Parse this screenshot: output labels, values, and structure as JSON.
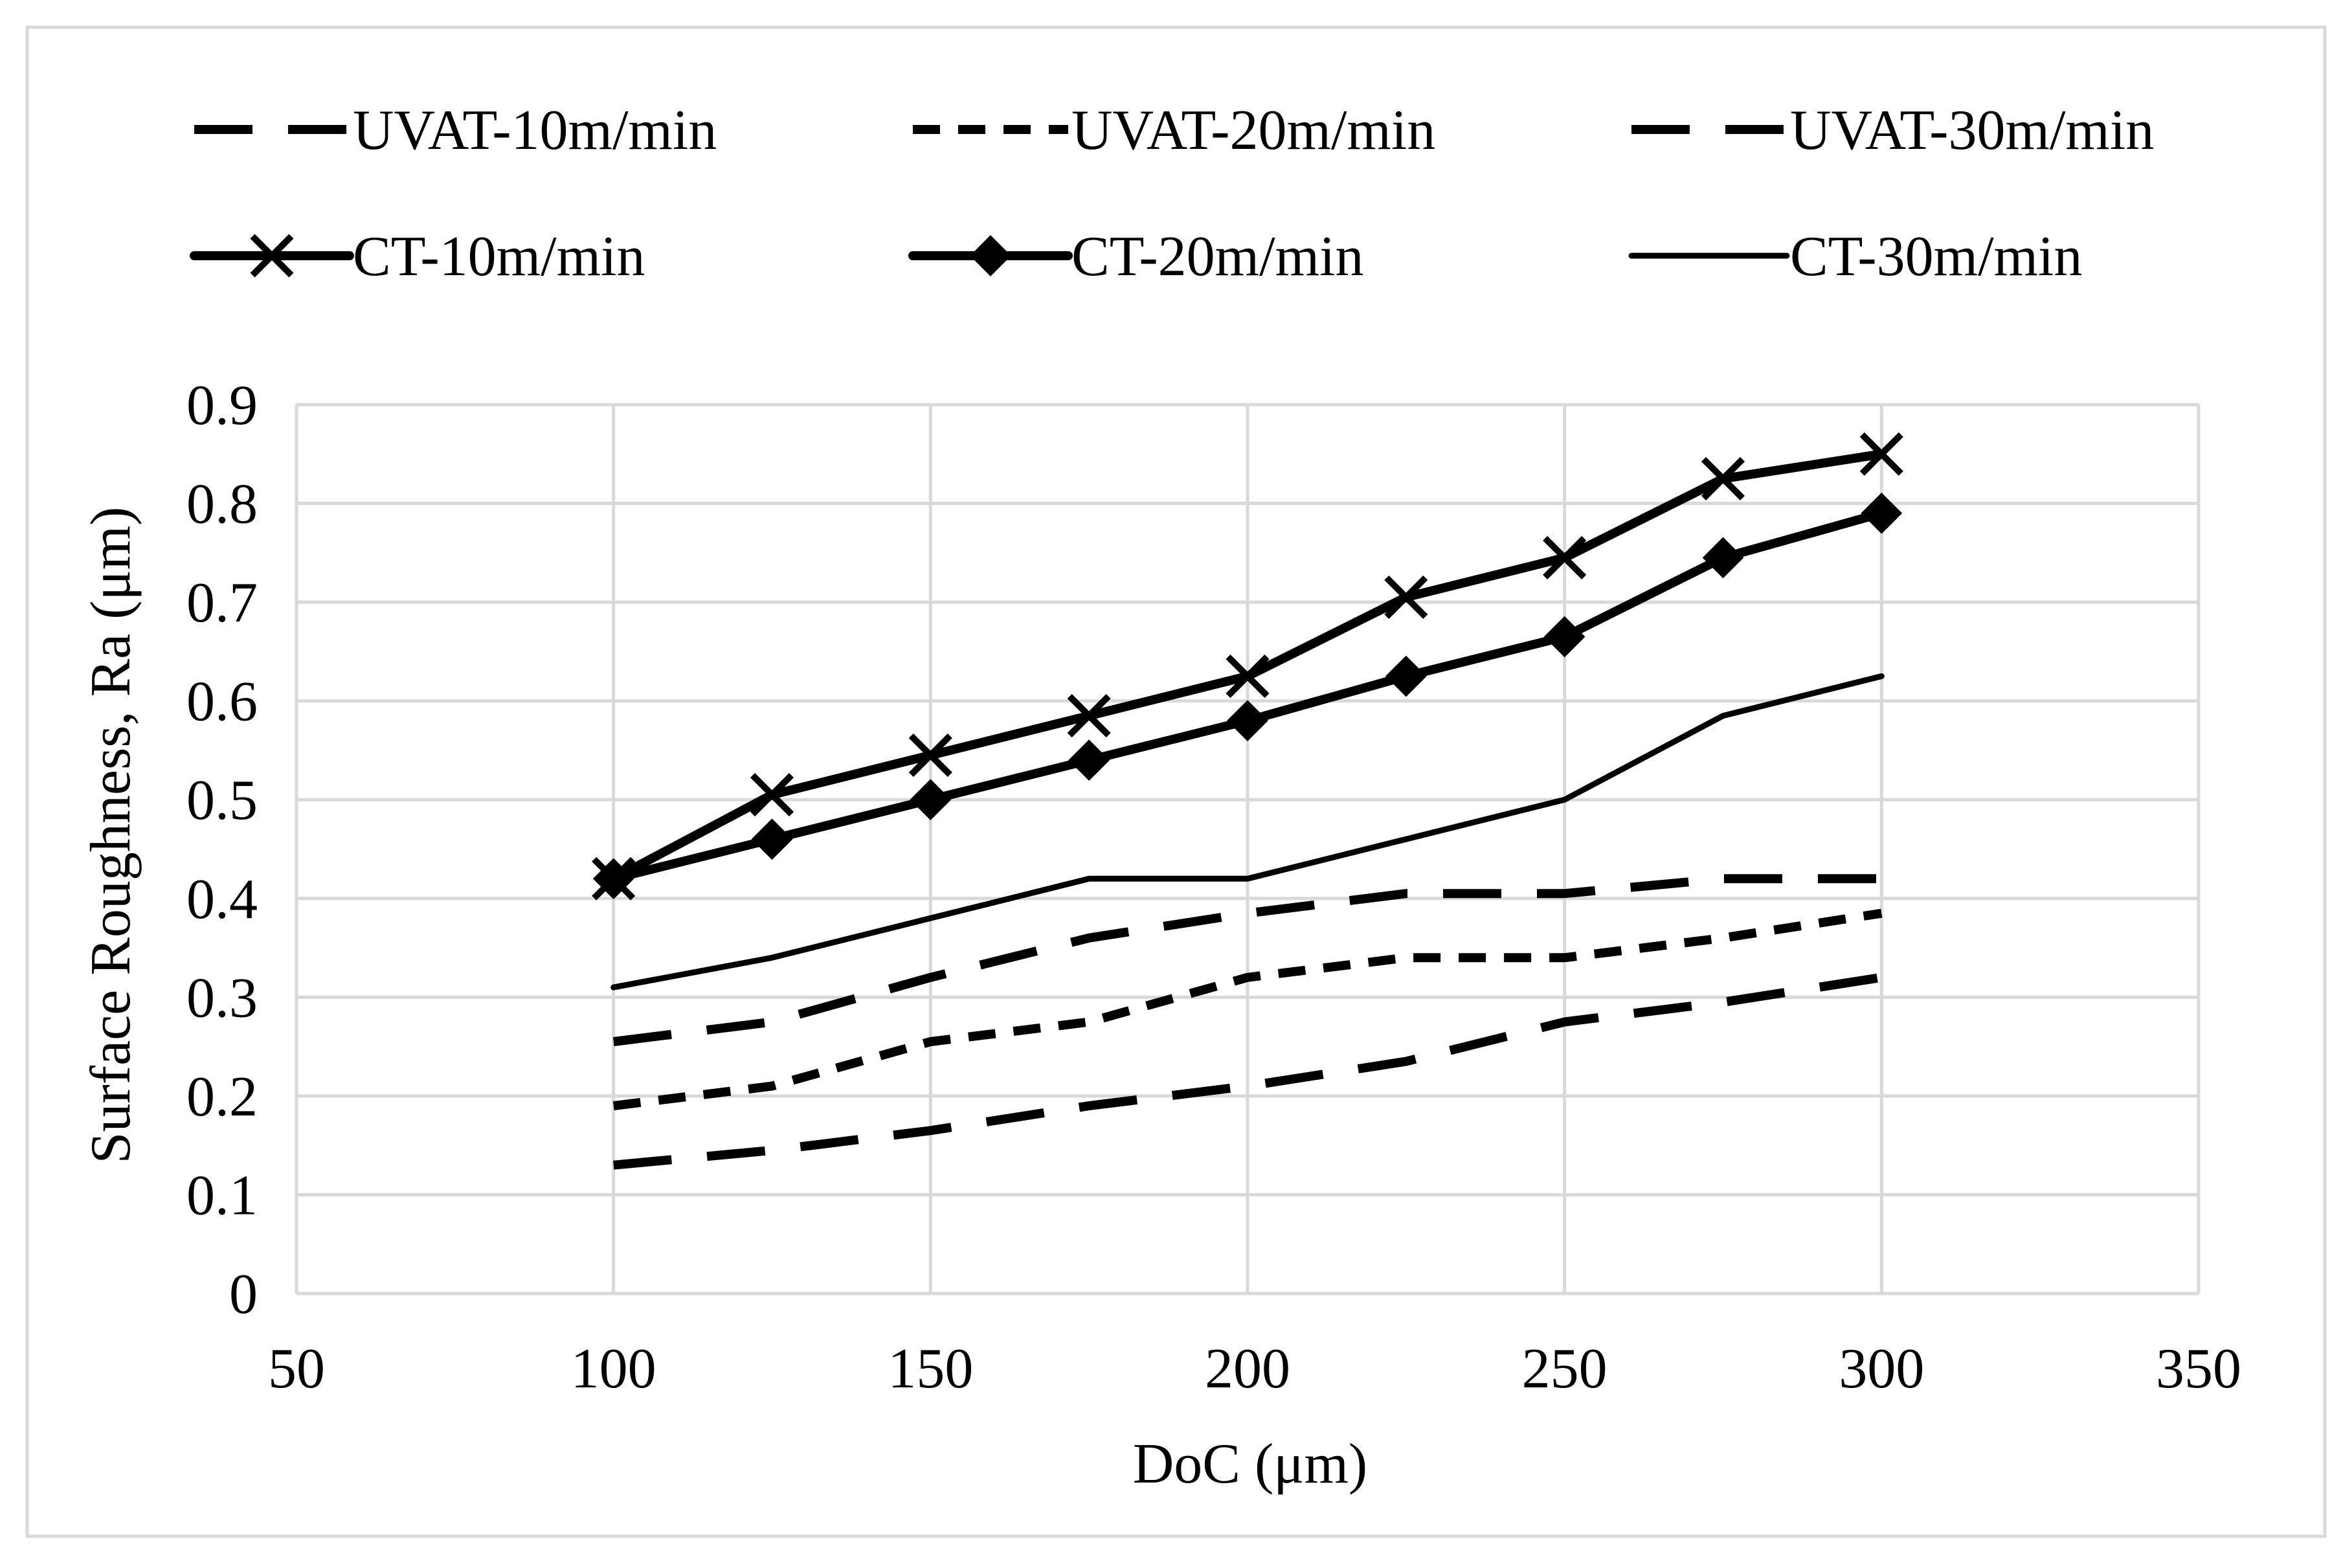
{
  "chart_data": {
    "type": "line",
    "title": "",
    "xlabel": "DoC (μm)",
    "ylabel": "Surface Roughness, Ra (μm)",
    "xlim": [
      50,
      350
    ],
    "ylim": [
      0,
      0.9
    ],
    "x_ticks": [
      50,
      100,
      150,
      200,
      250,
      300,
      350
    ],
    "y_ticks": [
      0,
      0.1,
      0.2,
      0.3,
      0.4,
      0.5,
      0.6,
      0.7,
      0.8,
      0.9
    ],
    "x_tick_labels": [
      "50",
      "100",
      "150",
      "200",
      "250",
      "300",
      "350"
    ],
    "y_tick_labels": [
      "0",
      "0.1",
      "0.2",
      "0.3",
      "0.4",
      "0.5",
      "0.6",
      "0.7",
      "0.8",
      "0.9"
    ],
    "grid": "both",
    "legend_position": "top",
    "x": [
      100,
      125,
      150,
      175,
      200,
      225,
      250,
      275,
      300
    ],
    "series": [
      {
        "name": "UVAT-10m/min",
        "style": "long-dash",
        "marker": "none",
        "values": [
          0.13,
          0.145,
          0.165,
          0.19,
          0.21,
          0.235,
          0.275,
          0.295,
          0.32
        ]
      },
      {
        "name": "UVAT-20m/min",
        "style": "short-dash",
        "marker": "none",
        "values": [
          0.19,
          0.21,
          0.255,
          0.275,
          0.32,
          0.34,
          0.34,
          0.36,
          0.385
        ]
      },
      {
        "name": "UVAT-30m/min",
        "style": "long-dash",
        "marker": "none",
        "values": [
          0.255,
          0.275,
          0.32,
          0.36,
          0.385,
          0.405,
          0.405,
          0.42,
          0.42
        ]
      },
      {
        "name": "CT-10m/min",
        "style": "solid-thick",
        "marker": "x",
        "values": [
          0.42,
          0.505,
          0.545,
          0.585,
          0.625,
          0.705,
          0.745,
          0.825,
          0.85
        ]
      },
      {
        "name": "CT-20m/min",
        "style": "solid-thick",
        "marker": "diamond",
        "values": [
          0.42,
          0.46,
          0.5,
          0.54,
          0.58,
          0.625,
          0.665,
          0.745,
          0.79
        ]
      },
      {
        "name": "CT-30m/min",
        "style": "solid-thin",
        "marker": "none",
        "values": [
          0.31,
          0.34,
          0.38,
          0.42,
          0.42,
          0.46,
          0.5,
          0.585,
          0.625
        ]
      }
    ]
  },
  "colors": {
    "line": "#000000",
    "grid": "#d9d9d9",
    "border": "#d9d9d9",
    "background": "#ffffff"
  }
}
